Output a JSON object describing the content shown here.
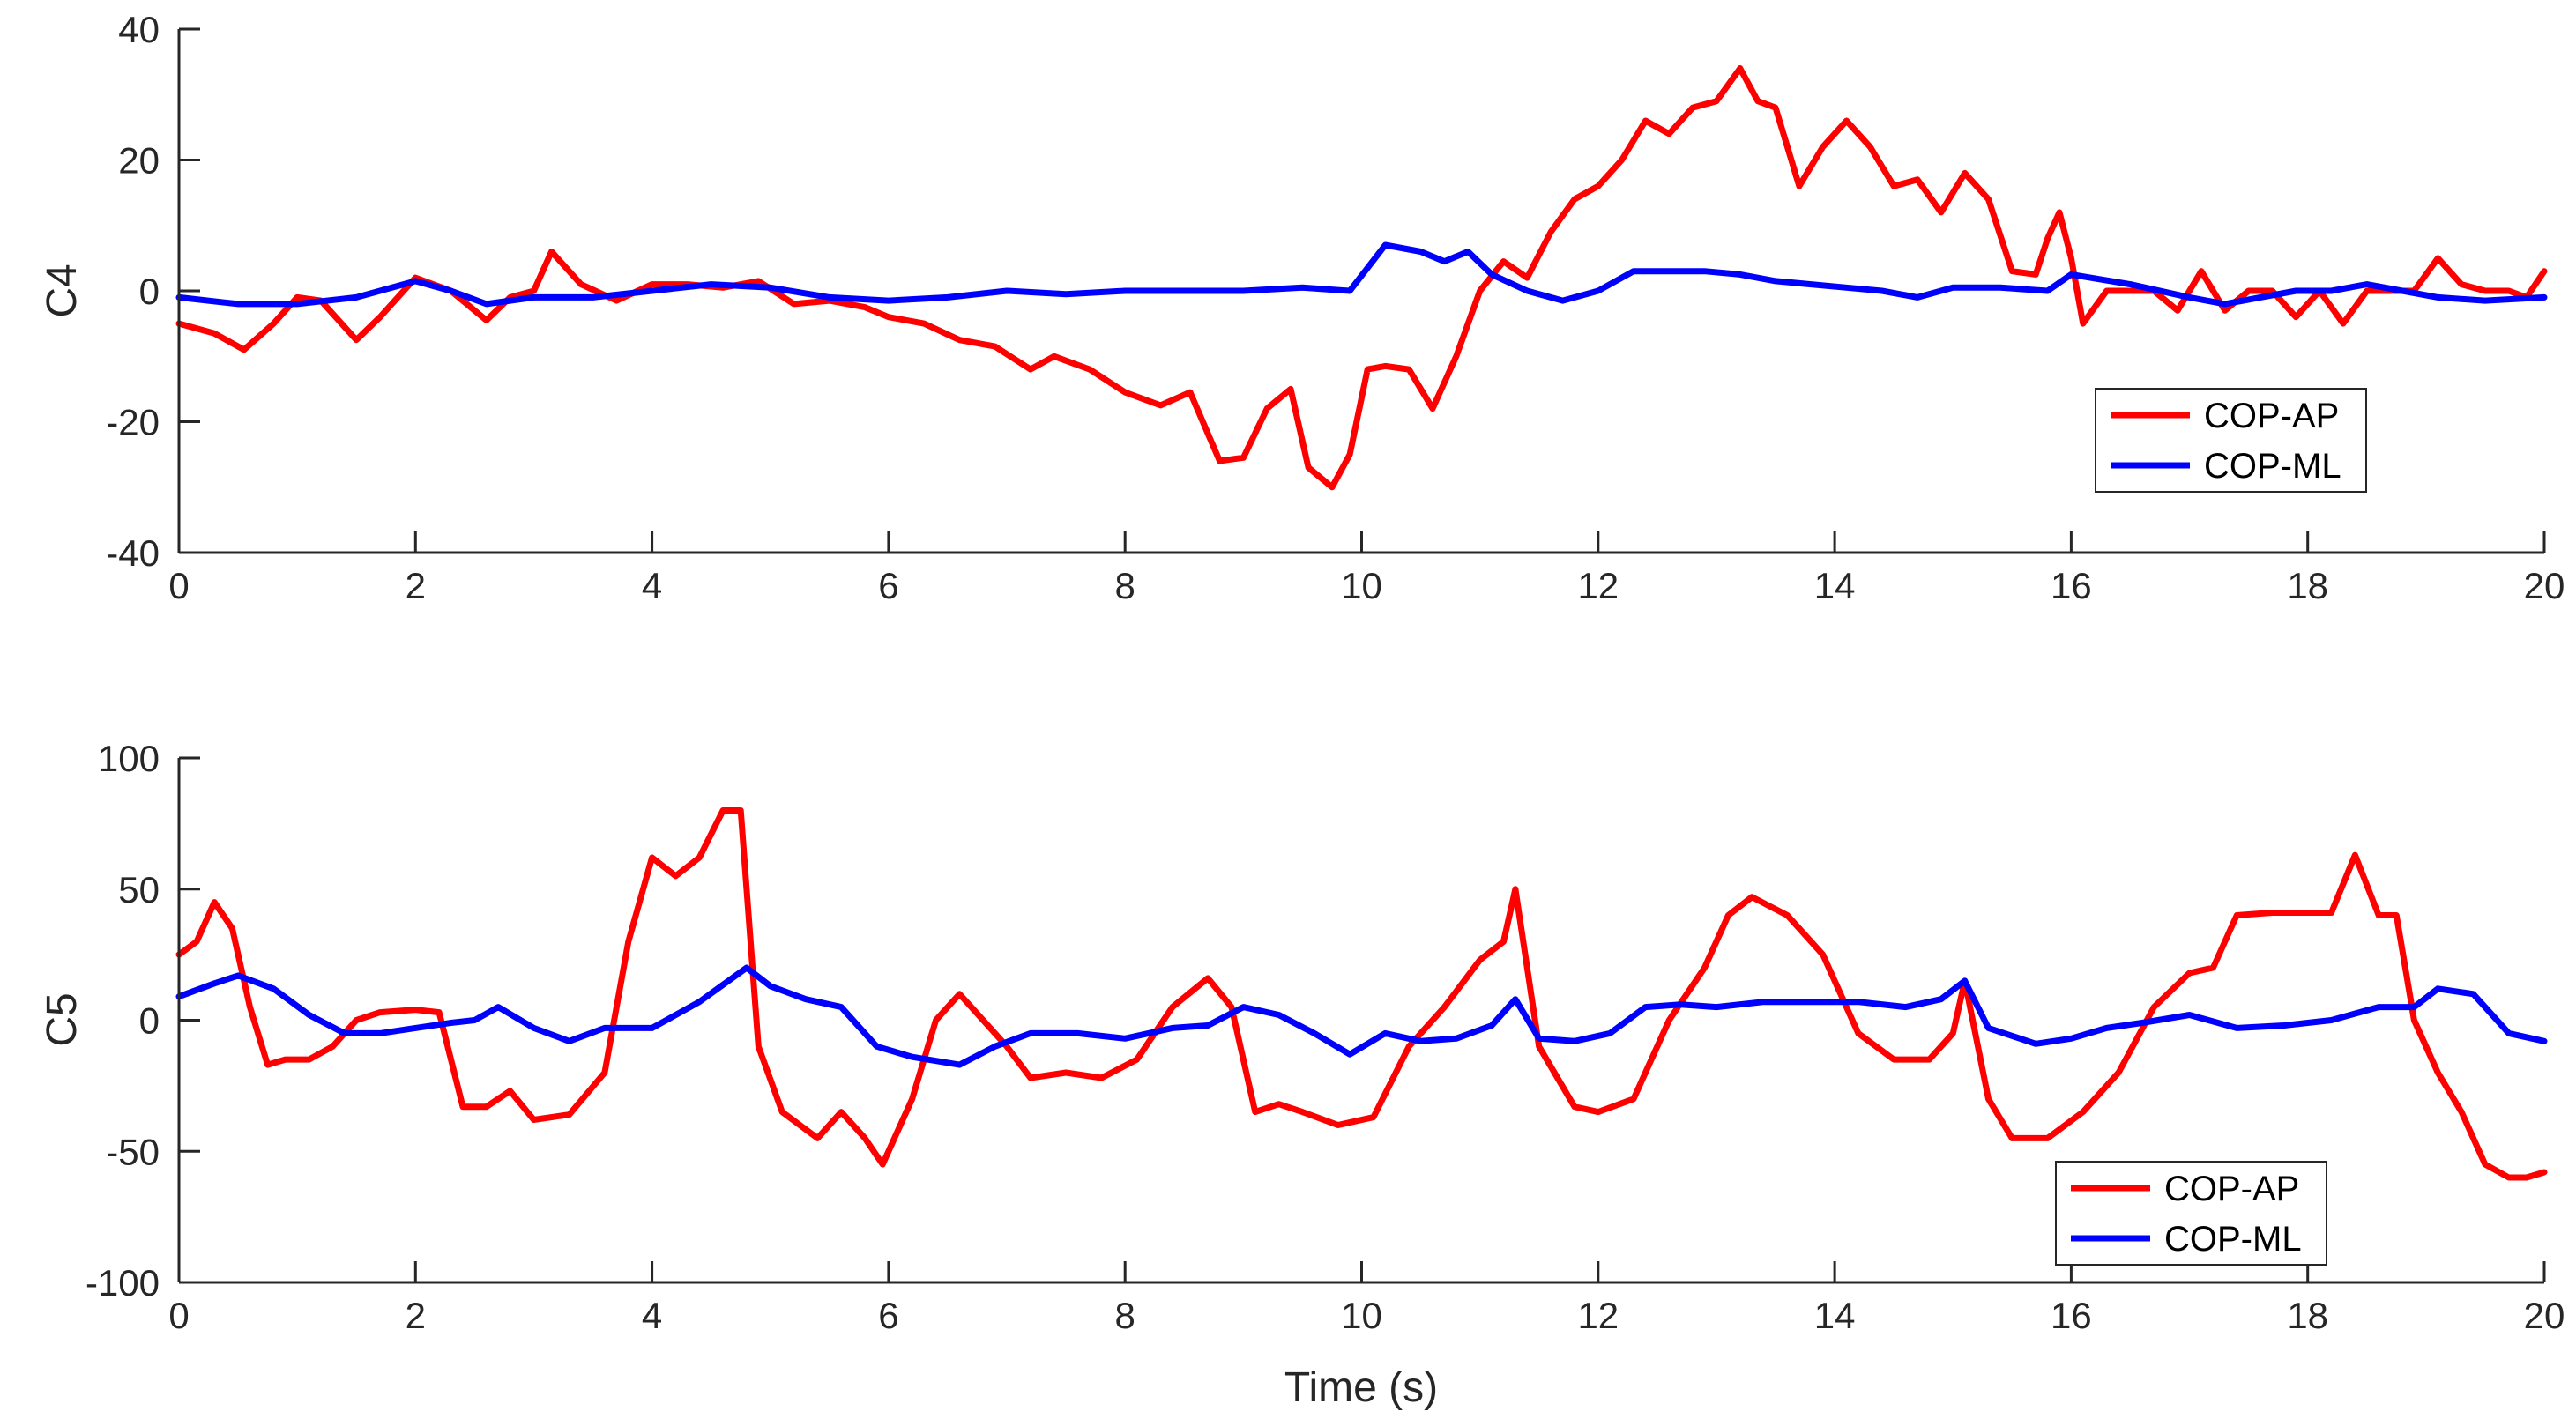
{
  "chart_data": [
    {
      "type": "line",
      "title": "",
      "xlabel": "",
      "ylabel": "C4",
      "xlim": [
        0,
        20
      ],
      "ylim": [
        -40,
        40
      ],
      "xticks": [
        "0",
        "2",
        "4",
        "6",
        "8",
        "10",
        "12",
        "14",
        "16",
        "18",
        "20"
      ],
      "yticks": [
        "-40",
        "-20",
        "0",
        "20",
        "40"
      ],
      "legend": {
        "position": "lower-right",
        "entries": [
          "COP-AP",
          "COP-ML"
        ]
      },
      "series": [
        {
          "name": "COP-AP",
          "color": "#ff0000",
          "x": [
            0,
            0.3,
            0.55,
            0.8,
            1.0,
            1.2,
            1.5,
            1.7,
            2.0,
            2.3,
            2.6,
            2.8,
            3.0,
            3.15,
            3.4,
            3.7,
            4.0,
            4.3,
            4.6,
            4.9,
            5.2,
            5.5,
            5.8,
            6.0,
            6.3,
            6.6,
            6.9,
            7.2,
            7.4,
            7.7,
            8.0,
            8.3,
            8.55,
            8.8,
            9.0,
            9.2,
            9.4,
            9.55,
            9.75,
            9.9,
            10.05,
            10.2,
            10.4,
            10.6,
            10.8,
            11.0,
            11.2,
            11.4,
            11.6,
            11.8,
            12.0,
            12.2,
            12.4,
            12.6,
            12.8,
            13.0,
            13.2,
            13.35,
            13.5,
            13.7,
            13.9,
            14.1,
            14.3,
            14.5,
            14.7,
            14.9,
            15.1,
            15.3,
            15.5,
            15.7,
            15.8,
            15.9,
            16.0,
            16.1,
            16.3,
            16.5,
            16.7,
            16.9,
            17.1,
            17.3,
            17.5,
            17.7,
            17.9,
            18.1,
            18.3,
            18.5,
            18.7,
            18.9,
            19.1,
            19.3,
            19.5,
            19.7,
            19.85,
            20
          ],
          "y": [
            -5,
            -6.5,
            -9,
            -5,
            -1,
            -1.5,
            -7.5,
            -4,
            2,
            0,
            -4.5,
            -1,
            0,
            6,
            1,
            -1.5,
            1,
            1,
            0.5,
            1.5,
            -2,
            -1.5,
            -2.5,
            -4,
            -5,
            -7.5,
            -8.5,
            -12,
            -10,
            -12,
            -15.5,
            -17.5,
            -15.5,
            -26,
            -25.5,
            -18,
            -15,
            -27,
            -30,
            -25,
            -12,
            -11.5,
            -12,
            -18,
            -10,
            0,
            4.5,
            2,
            9,
            14,
            16,
            20,
            26,
            24,
            28,
            29,
            34,
            29,
            28,
            16,
            22,
            26,
            22,
            16,
            17,
            12,
            18,
            14,
            3,
            2.5,
            8,
            12,
            5,
            -5,
            0,
            0,
            0,
            -3,
            3,
            -3,
            0,
            0,
            -4,
            0,
            -5,
            0,
            0,
            0,
            5,
            1,
            0,
            0,
            -1,
            3
          ]
        },
        {
          "name": "COP-ML",
          "color": "#0000ff",
          "x": [
            0,
            0.5,
            1.0,
            1.5,
            2.0,
            2.3,
            2.6,
            3.0,
            3.5,
            4.0,
            4.5,
            5.0,
            5.5,
            6.0,
            6.5,
            7.0,
            7.5,
            8.0,
            8.5,
            9.0,
            9.5,
            9.9,
            10.2,
            10.5,
            10.7,
            10.9,
            11.1,
            11.4,
            11.7,
            12.0,
            12.3,
            12.6,
            12.9,
            13.2,
            13.5,
            13.8,
            14.1,
            14.4,
            14.7,
            15.0,
            15.4,
            15.8,
            16.0,
            16.5,
            17.0,
            17.3,
            17.6,
            17.9,
            18.2,
            18.5,
            18.8,
            19.1,
            19.5,
            20
          ],
          "y": [
            -1,
            -2,
            -2,
            -1,
            1.5,
            0,
            -2,
            -1,
            -1,
            0,
            1,
            0.5,
            -1,
            -1.5,
            -1,
            0,
            -0.5,
            0,
            0,
            0,
            0.5,
            0,
            7,
            6,
            4.5,
            6,
            2.5,
            0,
            -1.5,
            0,
            3,
            3,
            3,
            2.5,
            1.5,
            1,
            0.5,
            0,
            -1,
            0.5,
            0.5,
            0,
            2.5,
            1,
            -1,
            -2,
            -1,
            0,
            0,
            1,
            0,
            -1,
            -1.5,
            -1
          ]
        }
      ]
    },
    {
      "type": "line",
      "title": "",
      "xlabel": "Time (s)",
      "ylabel": "C5",
      "xlim": [
        0,
        20
      ],
      "ylim": [
        -100,
        100
      ],
      "xticks": [
        "0",
        "2",
        "4",
        "6",
        "8",
        "10",
        "12",
        "14",
        "16",
        "18",
        "20"
      ],
      "yticks": [
        "-100",
        "-50",
        "0",
        "50",
        "100"
      ],
      "legend": {
        "position": "lower-right",
        "entries": [
          "COP-AP",
          "COP-ML"
        ]
      },
      "series": [
        {
          "name": "COP-AP",
          "color": "#ff0000",
          "x": [
            0,
            0.15,
            0.3,
            0.45,
            0.6,
            0.75,
            0.9,
            1.1,
            1.3,
            1.5,
            1.7,
            2.0,
            2.2,
            2.4,
            2.6,
            2.8,
            3.0,
            3.3,
            3.6,
            3.8,
            4.0,
            4.2,
            4.4,
            4.6,
            4.75,
            4.9,
            5.1,
            5.4,
            5.6,
            5.8,
            5.95,
            6.2,
            6.4,
            6.6,
            6.8,
            7.0,
            7.2,
            7.5,
            7.8,
            8.1,
            8.4,
            8.7,
            8.9,
            9.1,
            9.3,
            9.5,
            9.8,
            10.1,
            10.4,
            10.7,
            11.0,
            11.2,
            11.3,
            11.5,
            11.8,
            12.0,
            12.3,
            12.6,
            12.9,
            13.1,
            13.3,
            13.6,
            13.9,
            14.2,
            14.5,
            14.8,
            15.0,
            15.1,
            15.3,
            15.5,
            15.8,
            16.1,
            16.4,
            16.7,
            17.0,
            17.2,
            17.4,
            17.7,
            18.0,
            18.2,
            18.4,
            18.6,
            18.75,
            18.9,
            19.1,
            19.3,
            19.5,
            19.7,
            19.85,
            20
          ],
          "y": [
            25,
            30,
            45,
            35,
            5,
            -17,
            -15,
            -15,
            -10,
            0,
            3,
            4,
            3,
            -33,
            -33,
            -27,
            -38,
            -36,
            -20,
            30,
            62,
            55,
            62,
            80,
            80,
            -10,
            -35,
            -45,
            -35,
            -45,
            -55,
            -30,
            0,
            10,
            0,
            -10,
            -22,
            -20,
            -22,
            -15,
            5,
            16,
            5,
            -35,
            -32,
            -35,
            -40,
            -37,
            -10,
            5,
            23,
            30,
            50,
            -10,
            -33,
            -35,
            -30,
            0,
            20,
            40,
            47,
            40,
            25,
            -5,
            -15,
            -15,
            -5,
            15,
            -30,
            -45,
            -45,
            -35,
            -20,
            5,
            18,
            20,
            40,
            41,
            41,
            41,
            63,
            40,
            40,
            0,
            -20,
            -35,
            -55,
            -60,
            -60,
            -58
          ]
        },
        {
          "name": "COP-ML",
          "color": "#0000ff",
          "x": [
            0,
            0.3,
            0.5,
            0.8,
            1.1,
            1.4,
            1.7,
            2.0,
            2.3,
            2.5,
            2.7,
            3.0,
            3.3,
            3.6,
            4.0,
            4.4,
            4.8,
            5.0,
            5.3,
            5.6,
            5.9,
            6.2,
            6.6,
            6.9,
            7.2,
            7.6,
            8.0,
            8.4,
            8.7,
            9.0,
            9.3,
            9.6,
            9.9,
            10.2,
            10.5,
            10.8,
            11.1,
            11.3,
            11.5,
            11.8,
            12.1,
            12.4,
            12.7,
            13.0,
            13.4,
            13.8,
            14.2,
            14.6,
            14.9,
            15.1,
            15.3,
            15.7,
            16.0,
            16.3,
            16.6,
            17.0,
            17.4,
            17.8,
            18.2,
            18.6,
            18.9,
            19.1,
            19.4,
            19.7,
            20
          ],
          "y": [
            9,
            14,
            17,
            12,
            2,
            -5,
            -5,
            -3,
            -1,
            0,
            5,
            -3,
            -8,
            -3,
            -3,
            7,
            20,
            13,
            8,
            5,
            -10,
            -14,
            -17,
            -10,
            -5,
            -5,
            -7,
            -3,
            -2,
            5,
            2,
            -5,
            -13,
            -5,
            -8,
            -7,
            -2,
            8,
            -7,
            -8,
            -5,
            5,
            6,
            5,
            7,
            7,
            7,
            5,
            8,
            15,
            -3,
            -9,
            -7,
            -3,
            -1,
            2,
            -3,
            -2,
            0,
            5,
            5,
            12,
            10,
            -5,
            -8
          ]
        }
      ]
    }
  ]
}
